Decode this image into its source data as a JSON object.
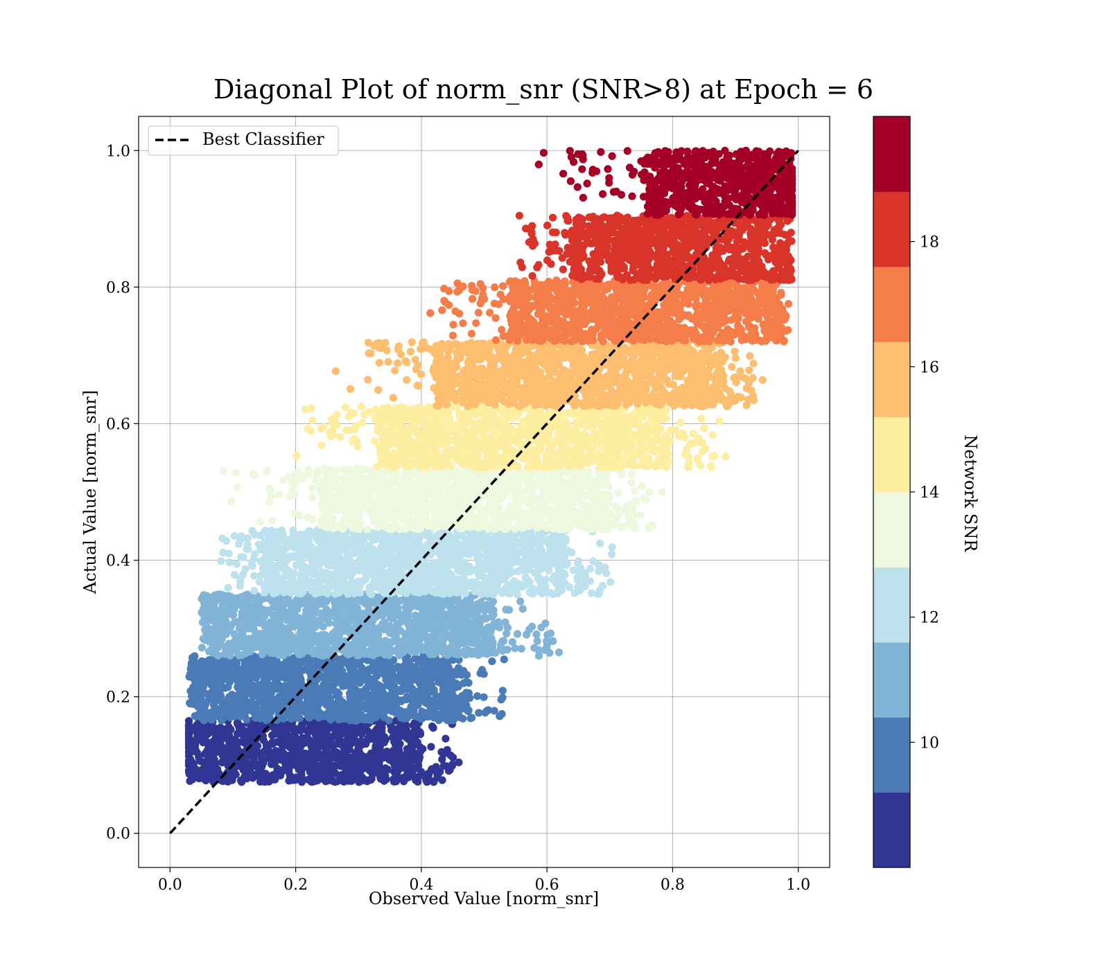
{
  "chart_data": {
    "type": "scatter",
    "title": "Diagonal Plot of norm_snr (SNR>8) at Epoch = 6",
    "xlabel": "Observed Value [norm_snr]",
    "ylabel": "Actual Value [norm_snr]",
    "xlim": [
      -0.05,
      1.05
    ],
    "ylim": [
      -0.05,
      1.05
    ],
    "x_ticks": [
      0.0,
      0.2,
      0.4,
      0.6,
      0.8,
      1.0
    ],
    "y_ticks": [
      0.0,
      0.2,
      0.4,
      0.6,
      0.8,
      1.0
    ],
    "x_tick_labels": [
      "0.0",
      "0.2",
      "0.4",
      "0.6",
      "0.8",
      "1.0"
    ],
    "y_tick_labels": [
      "0.0",
      "0.2",
      "0.4",
      "0.6",
      "0.8",
      "1.0"
    ],
    "grid": true,
    "legend": {
      "position": "top-left",
      "entries": [
        {
          "label": "Best Classifier",
          "style": "dashed",
          "color": "#000000"
        }
      ]
    },
    "reference_line": {
      "name": "Best Classifier",
      "x": [
        0.0,
        1.0
      ],
      "y": [
        0.0,
        1.0
      ],
      "style": "dashed",
      "color": "#000000"
    },
    "colorbar": {
      "label": "Network SNR",
      "range": [
        8,
        20
      ],
      "ticks": [
        10,
        12,
        14,
        16,
        18
      ],
      "tick_labels": [
        "10",
        "12",
        "14",
        "16",
        "18"
      ],
      "bands": [
        {
          "from": 8.0,
          "to": 9.2,
          "color": "#313695"
        },
        {
          "from": 9.2,
          "to": 10.4,
          "color": "#4a7bb7"
        },
        {
          "from": 10.4,
          "to": 11.6,
          "color": "#81b4d6"
        },
        {
          "from": 11.6,
          "to": 12.8,
          "color": "#bde2ee"
        },
        {
          "from": 12.8,
          "to": 14.0,
          "color": "#eef8df"
        },
        {
          "from": 14.0,
          "to": 15.2,
          "color": "#feeea1"
        },
        {
          "from": 15.2,
          "to": 16.4,
          "color": "#fdbe70"
        },
        {
          "from": 16.4,
          "to": 17.6,
          "color": "#f57d4a"
        },
        {
          "from": 17.6,
          "to": 18.8,
          "color": "#d93429"
        },
        {
          "from": 18.8,
          "to": 20.0,
          "color": "#a50026"
        }
      ]
    },
    "series_bands": [
      {
        "snr_band": [
          8.0,
          9.2
        ],
        "y_range": [
          0.075,
          0.165
        ],
        "x_core": [
          0.03,
          0.4
        ],
        "x_scatter": [
          0.03,
          0.46
        ]
      },
      {
        "snr_band": [
          9.2,
          10.4
        ],
        "y_range": [
          0.165,
          0.26
        ],
        "x_core": [
          0.04,
          0.46
        ],
        "x_scatter": [
          0.03,
          0.54
        ]
      },
      {
        "snr_band": [
          10.4,
          11.6
        ],
        "y_range": [
          0.26,
          0.35
        ],
        "x_core": [
          0.06,
          0.52
        ],
        "x_scatter": [
          0.05,
          0.65
        ]
      },
      {
        "snr_band": [
          11.6,
          12.8
        ],
        "y_range": [
          0.35,
          0.445
        ],
        "x_core": [
          0.15,
          0.63
        ],
        "x_scatter": [
          0.06,
          0.72
        ]
      },
      {
        "snr_band": [
          12.8,
          14.0
        ],
        "y_range": [
          0.445,
          0.535
        ],
        "x_core": [
          0.24,
          0.7
        ],
        "x_scatter": [
          0.08,
          0.8
        ]
      },
      {
        "snr_band": [
          14.0,
          15.2
        ],
        "y_range": [
          0.535,
          0.625
        ],
        "x_core": [
          0.33,
          0.79
        ],
        "x_scatter": [
          0.17,
          0.89
        ]
      },
      {
        "snr_band": [
          15.2,
          16.4
        ],
        "y_range": [
          0.625,
          0.72
        ],
        "x_core": [
          0.42,
          0.88
        ],
        "x_scatter": [
          0.26,
          0.96
        ]
      },
      {
        "snr_band": [
          16.4,
          17.6
        ],
        "y_range": [
          0.72,
          0.81
        ],
        "x_core": [
          0.54,
          0.96
        ],
        "x_scatter": [
          0.4,
          0.99
        ]
      },
      {
        "snr_band": [
          17.6,
          18.8
        ],
        "y_range": [
          0.81,
          0.905
        ],
        "x_core": [
          0.64,
          0.98
        ],
        "x_scatter": [
          0.55,
          0.99
        ]
      },
      {
        "snr_band": [
          18.8,
          20.0
        ],
        "y_range": [
          0.905,
          1.0
        ],
        "x_core": [
          0.76,
          0.99
        ],
        "x_scatter": [
          0.58,
          0.99
        ]
      }
    ]
  }
}
